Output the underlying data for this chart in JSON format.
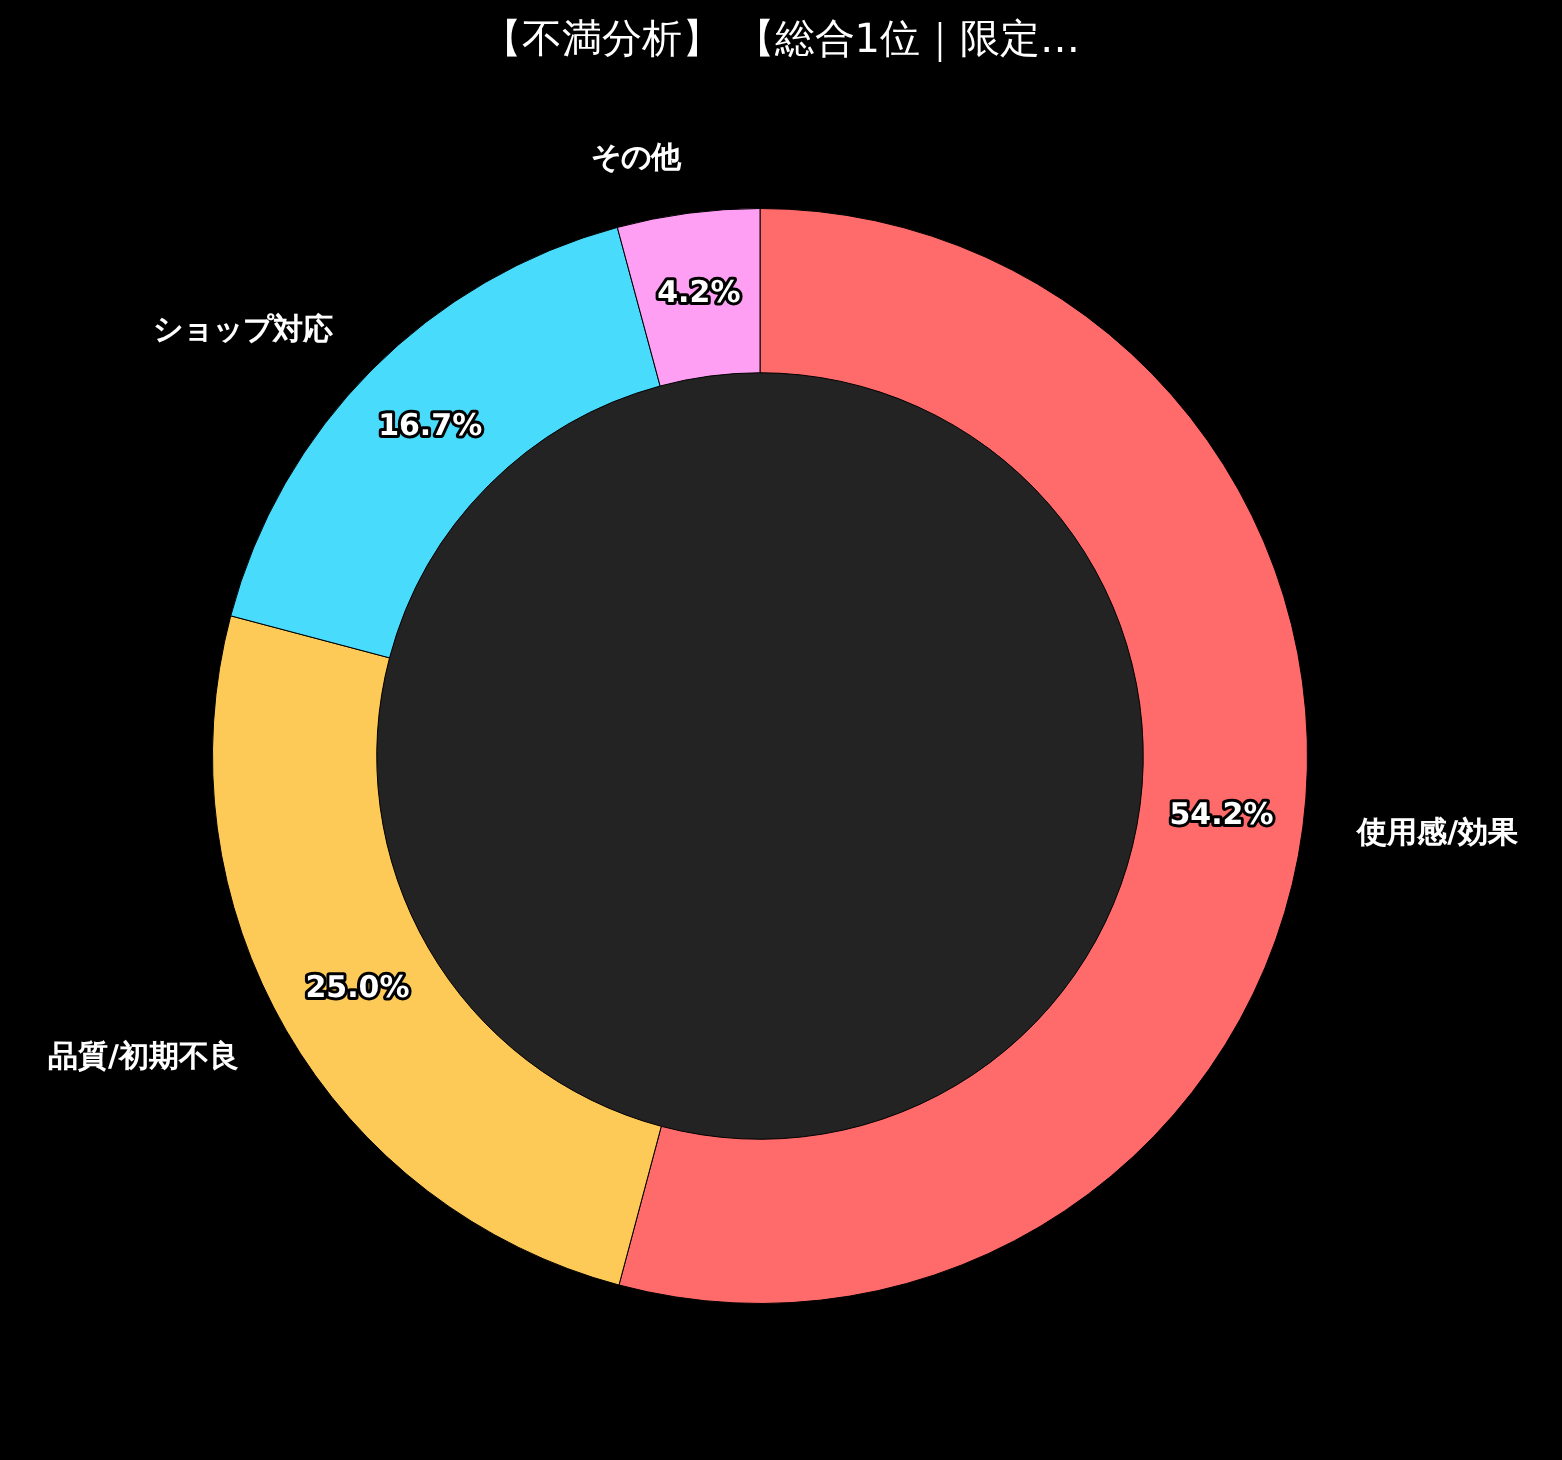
{
  "chart_data": {
    "type": "donut",
    "title": "【不満分析】 【総合1位｜限定…",
    "categories": [
      "使用感/効果",
      "品質/初期不良",
      "ショップ対応",
      "その他"
    ],
    "values": [
      54.2,
      25.0,
      16.7,
      4.2
    ],
    "colors": [
      "#ff6b6b",
      "#feca57",
      "#48dbfb",
      "#ff9ff3"
    ],
    "value_labels": [
      "54.2%",
      "25.0%",
      "16.7%",
      "4.2%"
    ],
    "legend": false
  }
}
